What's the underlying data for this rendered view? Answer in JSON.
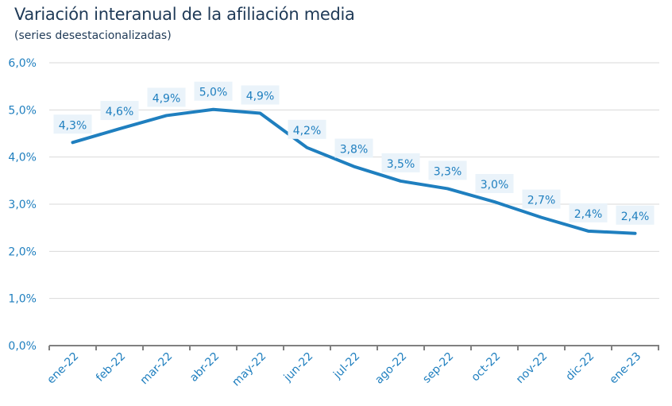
{
  "chart_data": {
    "type": "line",
    "title": "Variación interanual de la afiliación media",
    "subtitle": "(series desestacionalizadas)",
    "xlabel": "",
    "ylabel": "",
    "categories": [
      "ene-22",
      "feb-22",
      "mar-22",
      "abr-22",
      "may-22",
      "jun-22",
      "jul-22",
      "ago-22",
      "sep-22",
      "oct-22",
      "nov-22",
      "dic-22",
      "ene-23"
    ],
    "values": [
      4.31,
      4.6,
      4.88,
      5.01,
      4.93,
      4.2,
      3.8,
      3.49,
      3.33,
      3.05,
      2.72,
      2.43,
      2.38
    ],
    "data_labels": [
      "4,3%",
      "4,6%",
      "4,9%",
      "5,0%",
      "4,9%",
      "4,2%",
      "3,8%",
      "3,5%",
      "3,3%",
      "3,0%",
      "2,7%",
      "2,4%",
      "2,4%"
    ],
    "ylim": [
      0,
      6
    ],
    "yticks": [
      "0,0%",
      "1,0%",
      "2,0%",
      "3,0%",
      "4,0%",
      "5,0%",
      "6,0%"
    ],
    "grid": true,
    "legend": "none",
    "colors": {
      "line": "#1f7fbf",
      "label_bg": "#eaf3fa",
      "grid": "#d9d9d9",
      "axis": "#808080",
      "title": "#1f3a57"
    }
  }
}
